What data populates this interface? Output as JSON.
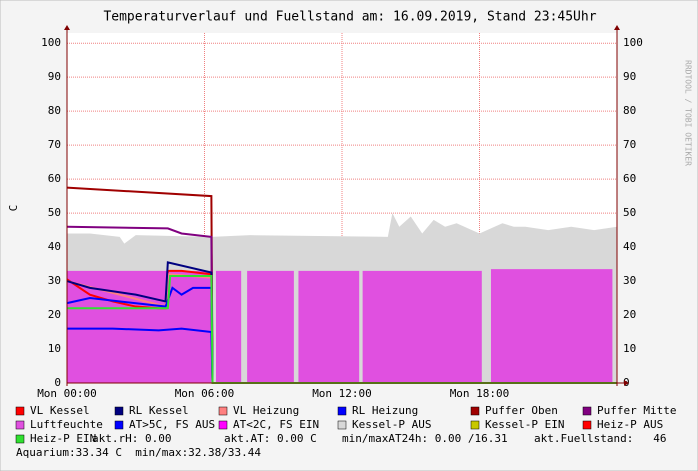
{
  "chart_data": {
    "type": "line",
    "title": "Temperaturverlauf und Fuellstand am: 16.09.2019, Stand 23:45Uhr",
    "y_label": "C",
    "watermark": "RRDTOOL / TOBI OETIKER",
    "xlim": [
      0,
      24
    ],
    "xticks": [
      {
        "value": 0,
        "label": "Mon 00:00"
      },
      {
        "value": 6,
        "label": "Mon 06:00"
      },
      {
        "value": 12,
        "label": "Mon 12:00"
      },
      {
        "value": 18,
        "label": "Mon 18:00"
      }
    ],
    "ylim": [
      0,
      103
    ],
    "yticks": [
      0,
      10,
      20,
      30,
      40,
      50,
      60,
      70,
      80,
      90,
      100
    ],
    "grid": true,
    "series": [
      {
        "name": "VL Kessel",
        "color": "#ff0000",
        "kind": "line",
        "x": [
          0,
          1,
          2,
          3,
          4,
          4.3,
          4.4,
          5,
          6.3,
          6.35,
          24
        ],
        "values": [
          30.5,
          26,
          24,
          22.5,
          22,
          22,
          33,
          33,
          32,
          0,
          0
        ]
      },
      {
        "name": "RL Kessel",
        "color": "#000080",
        "kind": "line",
        "x": [
          0,
          1,
          3,
          4.3,
          4.4,
          6.3,
          6.35,
          24
        ],
        "values": [
          30,
          28,
          26,
          24,
          35.5,
          32.5,
          0,
          0
        ]
      },
      {
        "name": "VL Heizung",
        "color": "#ff8080",
        "kind": "line",
        "x": [
          0,
          4.3,
          4.4,
          6.3,
          6.35,
          24
        ],
        "values": [
          30,
          22.5,
          32,
          31,
          0,
          0
        ]
      },
      {
        "name": "RL Heizung",
        "color": "#0000ff",
        "kind": "line",
        "x": [
          0,
          1,
          4.3,
          4.6,
          5,
          5.5,
          6.3,
          6.35,
          24
        ],
        "values": [
          23.5,
          25,
          22.5,
          28,
          26,
          28,
          28,
          0,
          0
        ]
      },
      {
        "name": "Puffer Oben",
        "color": "#a00000",
        "kind": "line",
        "x": [
          0,
          6.3,
          6.35,
          24
        ],
        "values": [
          57.5,
          55,
          0,
          0
        ]
      },
      {
        "name": "Puffer Mitte",
        "color": "#800080",
        "kind": "line",
        "x": [
          0,
          4.4,
          5,
          6.3,
          6.35,
          24
        ],
        "values": [
          46,
          45.5,
          44,
          43,
          0,
          0
        ]
      },
      {
        "name": "Luftfeuchte",
        "color": "#e050e0",
        "kind": "area",
        "x": [
          0,
          6.3,
          6.31,
          6.5,
          7.6,
          7.65,
          7.86,
          9.9,
          9.95,
          10.1,
          12.75,
          12.8,
          12.9,
          18.1,
          18.2,
          18.5,
          23.8
        ],
        "values": [
          33,
          33,
          null,
          33,
          33,
          null,
          33,
          33,
          null,
          33,
          33,
          null,
          33,
          33,
          null,
          33.5,
          33.5
        ]
      },
      {
        "name": "AT>5C, FS AUS",
        "color": "#0000ff",
        "kind": "line",
        "x": [
          0,
          2,
          4,
          5,
          6.3,
          6.35,
          24
        ],
        "values": [
          16,
          16,
          15.5,
          16,
          15,
          0,
          0
        ]
      },
      {
        "name": "AT<2C, FS EIN",
        "color": "#ff00ff",
        "kind": "line",
        "x": [],
        "values": []
      },
      {
        "name": "Kessel-P AUS",
        "color": "#d8d8d8",
        "kind": "area",
        "x": [
          0,
          1,
          2.3,
          2.5,
          3,
          6.3,
          8,
          14,
          14.2,
          14.5,
          15,
          15.5,
          16,
          16.5,
          17,
          18,
          19,
          19.5,
          20,
          21,
          22,
          23,
          24
        ],
        "values": [
          44,
          44,
          43,
          41,
          43.5,
          43,
          43.5,
          43,
          50,
          46,
          49,
          44,
          48,
          46,
          47,
          44,
          47,
          46,
          46,
          45,
          46,
          45,
          46
        ]
      },
      {
        "name": "Kessel-P EIN",
        "color": "#c8c800",
        "kind": "line",
        "x": [],
        "values": []
      },
      {
        "name": "Heiz-P AUS",
        "color": "#ff0000",
        "kind": "line",
        "x": [],
        "values": []
      },
      {
        "name": "Heiz-P EIN",
        "color": "#30e030",
        "kind": "line",
        "x": [
          0,
          2,
          4.4,
          4.5,
          6.3,
          6.35,
          24
        ],
        "values": [
          22,
          22,
          22,
          31.5,
          31.5,
          0,
          0
        ]
      }
    ],
    "draw_order": [
      9,
      6,
      4,
      5,
      8,
      0,
      2,
      1,
      3,
      7,
      10,
      11,
      12
    ],
    "legend_notes": [
      "akt.rH: 0.00",
      "akt.AT: 0.00 C",
      "min/maxAT24h: 0.00 /16.31",
      "akt.Fuellstand:   46",
      "Aquarium:33.34 C  min/max:32.38/33.44"
    ]
  }
}
